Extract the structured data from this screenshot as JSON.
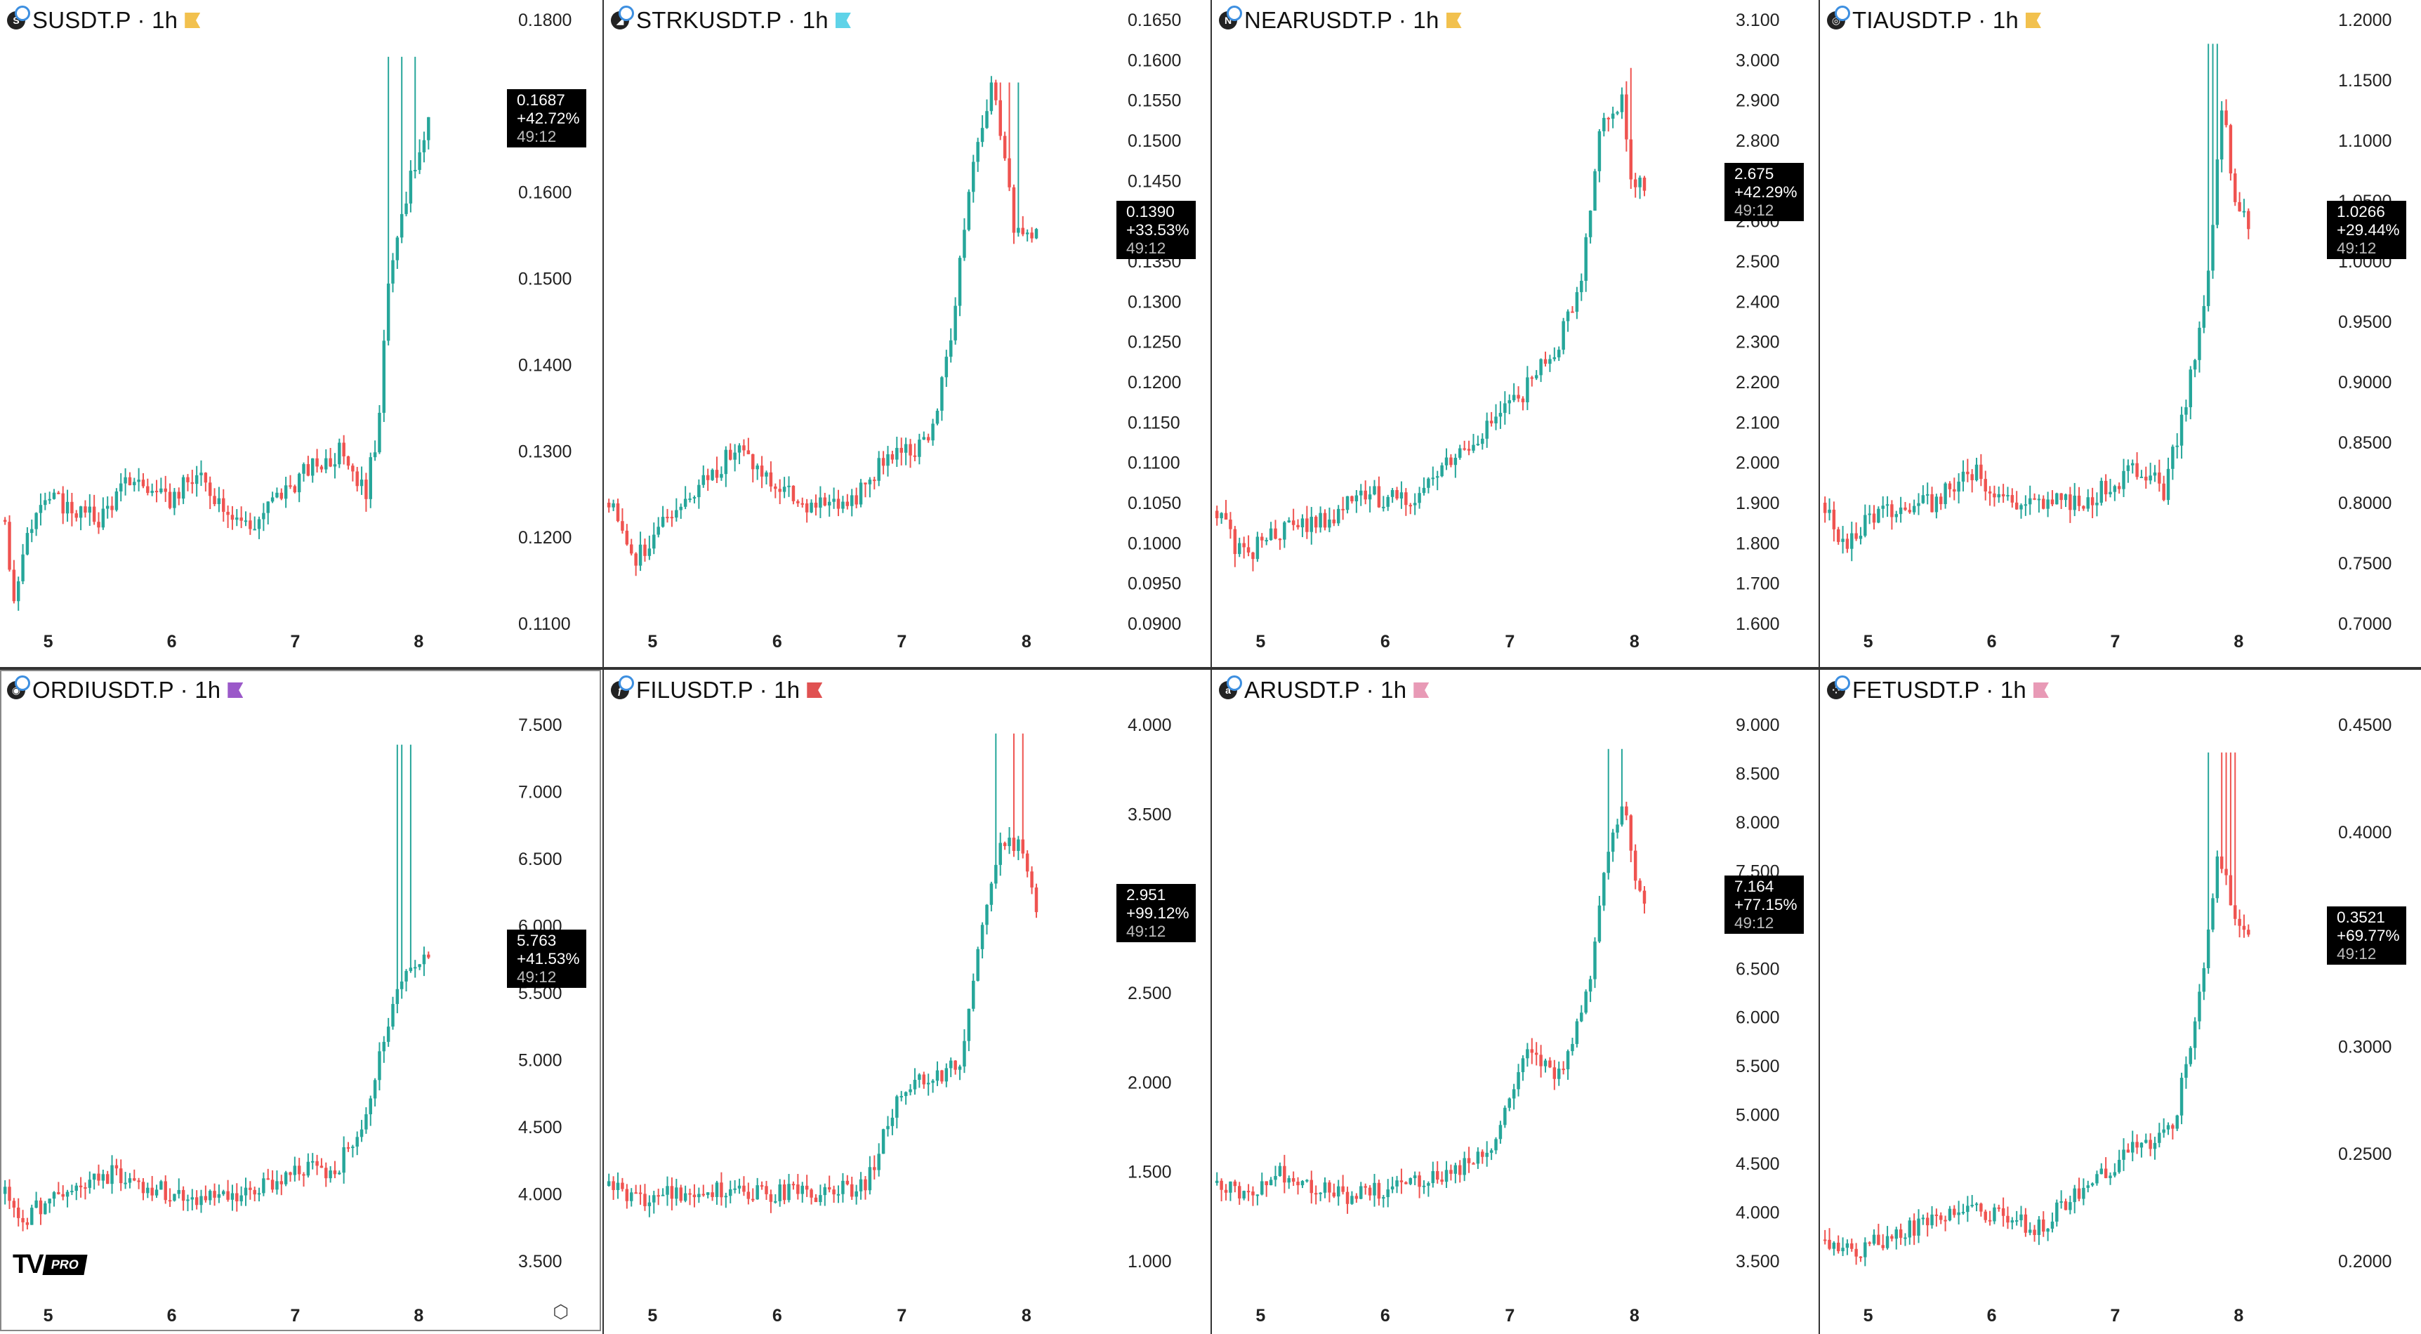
{
  "panels": [
    {
      "symbol": "SUSDT.P",
      "interval": "1h",
      "coin_icon": "S",
      "flag_color": "#f2c14e",
      "ticks": [
        "0.1800",
        "0.1700",
        "0.1600",
        "0.1500",
        "0.1400",
        "0.1300",
        "0.1200",
        "0.1100"
      ],
      "price": "0.1687",
      "change": "+42.72%",
      "timer": "49:12"
    },
    {
      "symbol": "STRKUSDT.P",
      "interval": "1h",
      "coin_icon": "◢",
      "flag_color": "#5fd3e8",
      "ticks": [
        "0.1650",
        "0.1600",
        "0.1550",
        "0.1500",
        "0.1450",
        "0.1400",
        "0.1350",
        "0.1300",
        "0.1250",
        "0.1200",
        "0.1150",
        "0.1100",
        "0.1050",
        "0.1000",
        "0.0950",
        "0.0900"
      ],
      "price": "0.1390",
      "change": "+33.53%",
      "timer": "49:12"
    },
    {
      "symbol": "NEARUSDT.P",
      "interval": "1h",
      "coin_icon": "N",
      "flag_color": "#f2c14e",
      "ticks": [
        "3.100",
        "3.000",
        "2.900",
        "2.800",
        "2.700",
        "2.600",
        "2.500",
        "2.400",
        "2.300",
        "2.200",
        "2.100",
        "2.000",
        "1.900",
        "1.800",
        "1.700",
        "1.600"
      ],
      "price": "2.675",
      "change": "+42.29%",
      "timer": "49:12"
    },
    {
      "symbol": "TIAUSDT.P",
      "interval": "1h",
      "coin_icon": "◎",
      "flag_color": "#f2c14e",
      "ticks": [
        "1.2000",
        "1.1500",
        "1.1000",
        "1.0500",
        "1.0000",
        "0.9500",
        "0.9000",
        "0.8500",
        "0.8000",
        "0.7500",
        "0.7000"
      ],
      "price": "1.0266",
      "change": "+29.44%",
      "timer": "49:12"
    },
    {
      "symbol": "ORDIUSDT.P",
      "interval": "1h",
      "coin_icon": "◉",
      "flag_color": "#9b59c9",
      "ticks": [
        "7.500",
        "7.000",
        "6.500",
        "6.000",
        "5.500",
        "5.000",
        "4.500",
        "4.000",
        "3.500"
      ],
      "price": "5.763",
      "change": "+41.53%",
      "timer": "49:12"
    },
    {
      "symbol": "FILUSDT.P",
      "interval": "1h",
      "coin_icon": "ƒ",
      "flag_color": "#e05252",
      "ticks": [
        "4.000",
        "3.500",
        "3.000",
        "2.500",
        "2.000",
        "1.500",
        "1.000"
      ],
      "price": "2.951",
      "change": "+99.12%",
      "timer": "49:12"
    },
    {
      "symbol": "ARUSDT.P",
      "interval": "1h",
      "coin_icon": "a",
      "flag_color": "#e89ab6",
      "ticks": [
        "9.000",
        "8.500",
        "8.000",
        "7.500",
        "7.000",
        "6.500",
        "6.000",
        "5.500",
        "5.000",
        "4.500",
        "4.000",
        "3.500"
      ],
      "price": "7.164",
      "change": "+77.15%",
      "timer": "49:12"
    },
    {
      "symbol": "FETUSDT.P",
      "interval": "1h",
      "coin_icon": "⁘",
      "flag_color": "#e89ab6",
      "ticks": [
        "0.4500",
        "0.4000",
        "0.3500",
        "0.3000",
        "0.2500",
        "0.2000"
      ],
      "price": "0.3521",
      "change": "+69.77%",
      "timer": "49:12"
    }
  ],
  "x_ticks": [
    "5",
    "6",
    "7",
    "8"
  ],
  "branding": {
    "logo": "TV",
    "pro": "PRO"
  },
  "colors": {
    "up": "#26a69a",
    "down": "#ef5350",
    "text": "#222222"
  },
  "chart_data": [
    {
      "type": "candlestick",
      "title": "SUSDT.P · 1h",
      "y_ticks": [
        0.18,
        0.17,
        0.16,
        0.15,
        0.14,
        0.13,
        0.12,
        0.11
      ],
      "ylim": [
        0.1045,
        0.1825
      ],
      "x_days": [
        5,
        6,
        7,
        8
      ],
      "start": 0.122,
      "shape": [
        [
          0,
          0.122
        ],
        [
          0.02,
          0.113
        ],
        [
          0.08,
          0.125
        ],
        [
          0.22,
          0.122
        ],
        [
          0.3,
          0.127
        ],
        [
          0.38,
          0.124
        ],
        [
          0.45,
          0.127
        ],
        [
          0.58,
          0.121
        ],
        [
          0.63,
          0.124
        ],
        [
          0.72,
          0.128
        ],
        [
          0.8,
          0.13
        ],
        [
          0.85,
          0.125
        ],
        [
          0.88,
          0.132
        ],
        [
          0.9,
          0.148
        ],
        [
          0.95,
          0.16
        ],
        [
          1.0,
          0.1687
        ]
      ],
      "spike_high": 0.1757,
      "last": 0.1687
    },
    {
      "type": "candlestick",
      "title": "STRKUSDT.P · 1h",
      "y_ticks": [
        0.165,
        0.16,
        0.155,
        0.15,
        0.145,
        0.14,
        0.135,
        0.13,
        0.125,
        0.12,
        0.115,
        0.11,
        0.105,
        0.1,
        0.095,
        0.09
      ],
      "ylim": [
        0.0875,
        0.1665
      ],
      "x_days": [
        5,
        6,
        7,
        8
      ],
      "shape": [
        [
          0,
          0.105
        ],
        [
          0.06,
          0.098
        ],
        [
          0.12,
          0.102
        ],
        [
          0.2,
          0.106
        ],
        [
          0.3,
          0.112
        ],
        [
          0.45,
          0.105
        ],
        [
          0.55,
          0.104
        ],
        [
          0.65,
          0.111
        ],
        [
          0.75,
          0.112
        ],
        [
          0.8,
          0.126
        ],
        [
          0.85,
          0.148
        ],
        [
          0.9,
          0.157
        ],
        [
          0.93,
          0.145
        ],
        [
          0.95,
          0.139
        ],
        [
          1.0,
          0.139
        ]
      ],
      "spike_high": 0.1572,
      "last": 0.139
    },
    {
      "type": "candlestick",
      "title": "NEARUSDT.P · 1h",
      "y_ticks": [
        3.1,
        3.0,
        2.9,
        2.8,
        2.7,
        2.6,
        2.5,
        2.4,
        2.3,
        2.2,
        2.1,
        2.0,
        1.9,
        1.8,
        1.7,
        1.6
      ],
      "ylim": [
        1.59,
        3.12
      ],
      "x_days": [
        5,
        6,
        7,
        8
      ],
      "shape": [
        [
          0,
          1.88
        ],
        [
          0.06,
          1.76
        ],
        [
          0.12,
          1.82
        ],
        [
          0.25,
          1.86
        ],
        [
          0.35,
          1.92
        ],
        [
          0.45,
          1.9
        ],
        [
          0.5,
          1.95
        ],
        [
          0.6,
          2.05
        ],
        [
          0.7,
          2.15
        ],
        [
          0.8,
          2.3
        ],
        [
          0.85,
          2.45
        ],
        [
          0.9,
          2.85
        ],
        [
          0.95,
          2.9
        ],
        [
          0.97,
          2.7
        ],
        [
          1.0,
          2.675
        ]
      ],
      "spike_high": 2.98,
      "last": 2.675
    },
    {
      "type": "candlestick",
      "title": "TIAUSDT.P · 1h",
      "y_ticks": [
        1.2,
        1.15,
        1.1,
        1.05,
        1.0,
        0.95,
        0.9,
        0.85,
        0.8,
        0.75,
        0.7
      ],
      "ylim": [
        0.685,
        1.215
      ],
      "x_days": [
        5,
        6,
        7,
        8
      ],
      "shape": [
        [
          0,
          0.8
        ],
        [
          0.05,
          0.76
        ],
        [
          0.1,
          0.79
        ],
        [
          0.25,
          0.8
        ],
        [
          0.35,
          0.825
        ],
        [
          0.45,
          0.8
        ],
        [
          0.6,
          0.8
        ],
        [
          0.75,
          0.83
        ],
        [
          0.8,
          0.81
        ],
        [
          0.85,
          0.88
        ],
        [
          0.9,
          0.97
        ],
        [
          0.94,
          1.14
        ],
        [
          0.96,
          1.06
        ],
        [
          1.0,
          1.0266
        ]
      ],
      "spike_high": 1.18,
      "last": 1.0266
    },
    {
      "type": "candlestick",
      "title": "ORDIUSDT.P · 1h",
      "y_ticks": [
        7.5,
        7.0,
        6.5,
        6.0,
        5.5,
        5.0,
        4.5,
        4.0,
        3.5
      ],
      "ylim": [
        3.4,
        7.6
      ],
      "x_days": [
        5,
        6,
        7,
        8
      ],
      "shape": [
        [
          0,
          4.0
        ],
        [
          0.04,
          3.8
        ],
        [
          0.1,
          3.95
        ],
        [
          0.25,
          4.15
        ],
        [
          0.4,
          4.0
        ],
        [
          0.55,
          3.95
        ],
        [
          0.7,
          4.2
        ],
        [
          0.78,
          4.15
        ],
        [
          0.85,
          4.6
        ],
        [
          0.9,
          5.2
        ],
        [
          0.95,
          5.7
        ],
        [
          1.0,
          5.763
        ]
      ],
      "spike_high": 7.35,
      "last": 5.763
    },
    {
      "type": "candlestick",
      "title": "FILUSDT.P · 1h",
      "y_ticks": [
        4.0,
        3.5,
        3.0,
        2.5,
        2.0,
        1.5,
        1.0
      ],
      "ylim": [
        0.95,
        4.1
      ],
      "x_days": [
        5,
        6,
        7,
        8
      ],
      "shape": [
        [
          0,
          1.42
        ],
        [
          0.08,
          1.35
        ],
        [
          0.2,
          1.4
        ],
        [
          0.35,
          1.38
        ],
        [
          0.5,
          1.38
        ],
        [
          0.6,
          1.42
        ],
        [
          0.68,
          1.95
        ],
        [
          0.78,
          2.05
        ],
        [
          0.82,
          2.1
        ],
        [
          0.88,
          3.0
        ],
        [
          0.92,
          3.35
        ],
        [
          0.97,
          3.3
        ],
        [
          1.0,
          2.951
        ]
      ],
      "spike_high": 3.95,
      "last": 2.951
    },
    {
      "type": "candlestick",
      "title": "ARUSDT.P · 1h",
      "y_ticks": [
        9.0,
        8.5,
        8.0,
        7.5,
        7.0,
        6.5,
        6.0,
        5.5,
        5.0,
        4.5,
        4.0,
        3.5
      ],
      "ylim": [
        3.45,
        9.1
      ],
      "x_days": [
        5,
        6,
        7,
        8
      ],
      "shape": [
        [
          0,
          4.3
        ],
        [
          0.06,
          4.2
        ],
        [
          0.15,
          4.4
        ],
        [
          0.3,
          4.15
        ],
        [
          0.45,
          4.3
        ],
        [
          0.55,
          4.4
        ],
        [
          0.65,
          4.7
        ],
        [
          0.72,
          5.6
        ],
        [
          0.8,
          5.4
        ],
        [
          0.87,
          6.3
        ],
        [
          0.9,
          7.4
        ],
        [
          0.95,
          8.3
        ],
        [
          0.98,
          7.4
        ],
        [
          1.0,
          7.164
        ]
      ],
      "spike_high": 8.75,
      "last": 7.164
    },
    {
      "type": "candlestick",
      "title": "FETUSDT.P · 1h",
      "y_ticks": [
        0.45,
        0.4,
        0.35,
        0.3,
        0.25,
        0.2
      ],
      "ylim": [
        0.19,
        0.46
      ],
      "x_days": [
        5,
        6,
        7,
        8
      ],
      "shape": [
        [
          0,
          0.21
        ],
        [
          0.08,
          0.205
        ],
        [
          0.2,
          0.215
        ],
        [
          0.35,
          0.225
        ],
        [
          0.5,
          0.215
        ],
        [
          0.65,
          0.24
        ],
        [
          0.75,
          0.255
        ],
        [
          0.82,
          0.26
        ],
        [
          0.88,
          0.32
        ],
        [
          0.93,
          0.39
        ],
        [
          0.97,
          0.36
        ],
        [
          1.0,
          0.3521
        ]
      ],
      "spike_high": 0.437,
      "last": 0.3521
    }
  ]
}
